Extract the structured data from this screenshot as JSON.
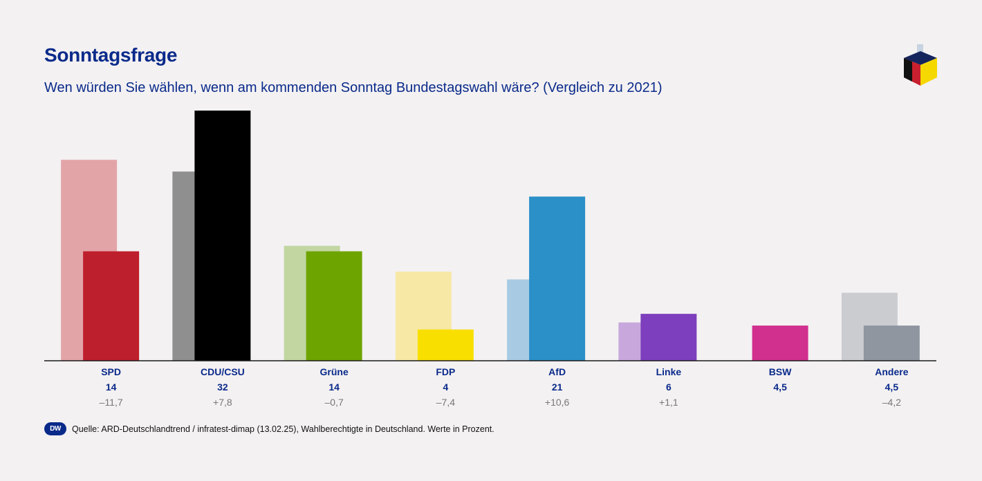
{
  "header": {
    "title": "Sonntagsfrage",
    "subtitle": "Wen würden Sie wählen, wenn am kommenden Sonntag Bundestagswahl wäre? (Vergleich zu 2021)"
  },
  "footer": {
    "logo_text": "DW",
    "source": "Quelle: ARD-Deutschlandtrend / infratest-dimap (13.02.25), Wahlberechtigte in Deutschland. Werte in Prozent."
  },
  "colors": {
    "title": "#0a2a8a",
    "axis": "#1a1a1a",
    "change": "#777777",
    "logo_red": "#c8202e",
    "logo_yellow": "#f5d800",
    "logo_black": "#111111",
    "logo_navy": "#14245c",
    "logo_ballot": "#c7d3e0"
  },
  "chart_data": {
    "type": "bar",
    "title": "Sonntagsfrage",
    "subtitle": "Wen würden Sie wählen, wenn am kommenden Sonntag Bundestagswahl wäre? (Vergleich zu 2021)",
    "xlabel": "",
    "ylabel": "",
    "ylim": [
      0,
      32
    ],
    "grid": false,
    "categories": [
      "SPD",
      "CDU/CSU",
      "Grüne",
      "FDP",
      "AfD",
      "Linke",
      "BSW",
      "Andere"
    ],
    "series": [
      {
        "name": "2021",
        "values": [
          25.7,
          24.2,
          14.7,
          11.4,
          10.4,
          4.9,
          null,
          8.7
        ],
        "colors": [
          "#e3a4a8",
          "#8f8f8f",
          "#c2d6a2",
          "#f7e8a6",
          "#a8cbe3",
          "#c8a8dc",
          null,
          "#cbccd0"
        ]
      },
      {
        "name": "Sonntagsfrage",
        "values": [
          14,
          32,
          14,
          4,
          21,
          6,
          4.5,
          4.5
        ],
        "colors": [
          "#be1f2c",
          "#000000",
          "#6ea400",
          "#f8df00",
          "#2b8fc8",
          "#7d3fbd",
          "#d1308f",
          "#8f96a0"
        ]
      }
    ],
    "value_labels": [
      "14",
      "32",
      "14",
      "4",
      "21",
      "6",
      "4,5",
      "4,5"
    ],
    "change_labels": [
      "–11,7",
      "+7,8",
      "–0,7",
      "–7,4",
      "+10,6",
      "+1,1",
      "",
      "–4,2"
    ]
  }
}
